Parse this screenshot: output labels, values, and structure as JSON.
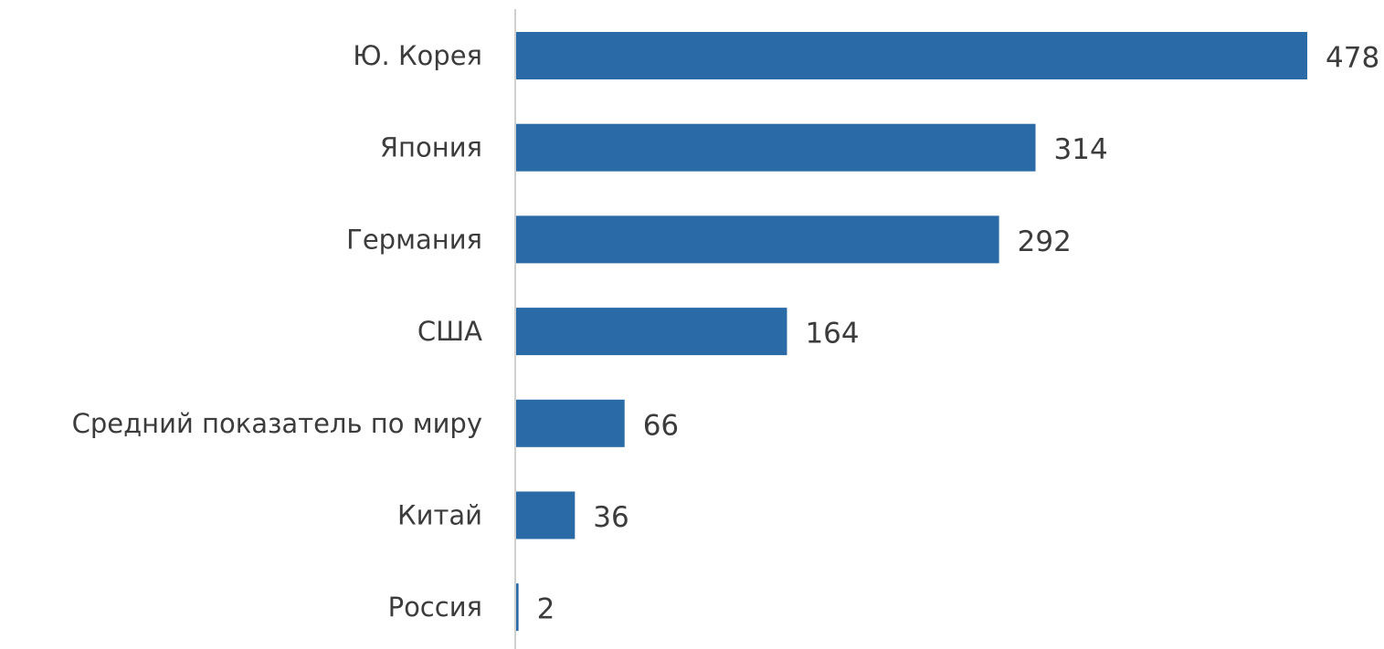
{
  "chart_data": {
    "type": "bar",
    "orientation": "horizontal",
    "categories": [
      "Ю. Корея",
      "Япония",
      "Германия",
      "США",
      "Средний показатель по миру",
      "Китай",
      "Россия"
    ],
    "values": [
      478,
      314,
      292,
      164,
      66,
      36,
      2
    ],
    "color": "#2a6aa7"
  }
}
